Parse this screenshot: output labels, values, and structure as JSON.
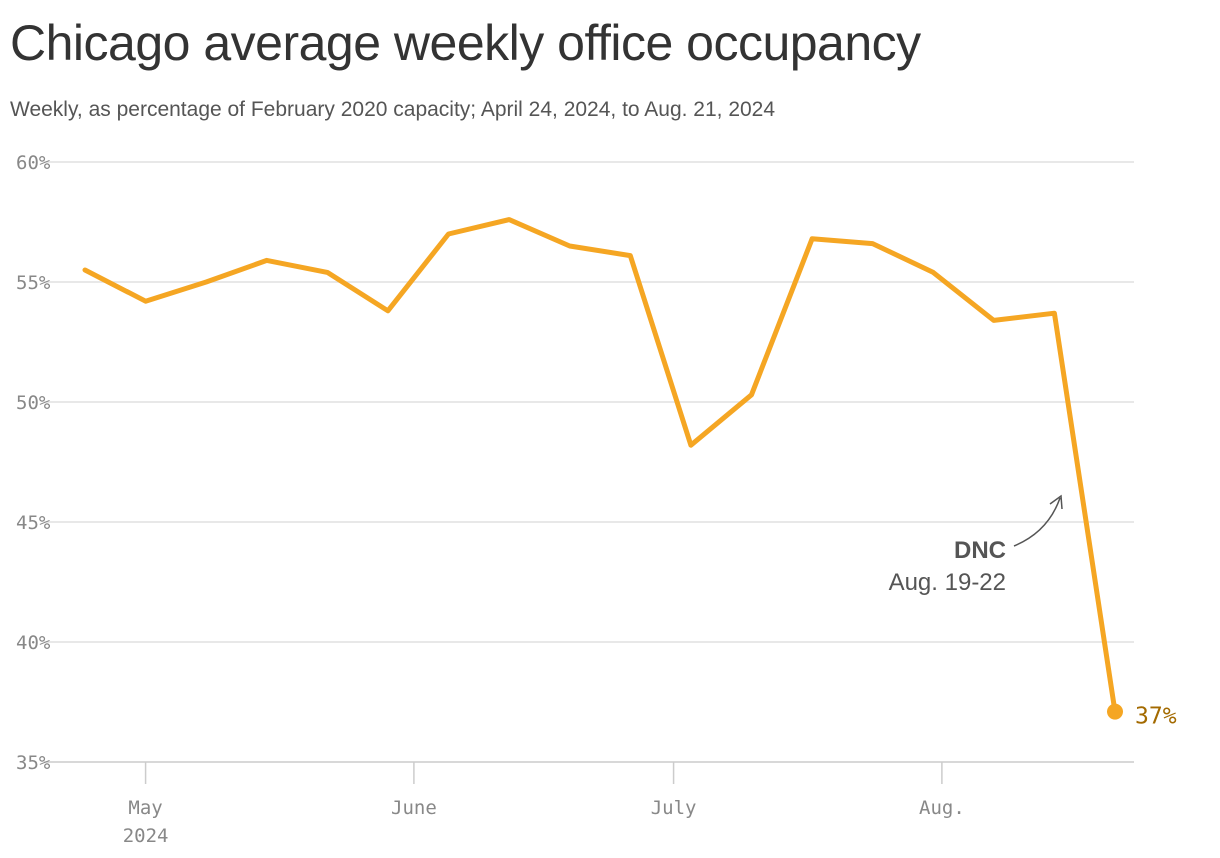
{
  "title": "Chicago average weekly office occupancy",
  "subtitle": "Weekly, as percentage of February 2020 capacity; April 24, 2024, to Aug. 21, 2024",
  "colors": {
    "line": "#f5a623",
    "grid": "#e0e0e0",
    "tick_text": "#888888",
    "annotation": "#555555",
    "end_label": "#a36a00"
  },
  "chart_data": {
    "type": "line",
    "title": "Chicago average weekly office occupancy",
    "subtitle": "Weekly, as percentage of February 2020 capacity; April 24, 2024, to Aug. 21, 2024",
    "xlabel": "",
    "ylabel": "",
    "x": [
      "2024-04-24",
      "2024-05-01",
      "2024-05-08",
      "2024-05-15",
      "2024-05-22",
      "2024-05-29",
      "2024-06-05",
      "2024-06-12",
      "2024-06-19",
      "2024-06-26",
      "2024-07-03",
      "2024-07-10",
      "2024-07-17",
      "2024-07-24",
      "2024-07-31",
      "2024-08-07",
      "2024-08-14",
      "2024-08-21"
    ],
    "values": [
      55.5,
      54.2,
      55.0,
      55.9,
      55.4,
      53.8,
      57.0,
      57.6,
      56.5,
      56.1,
      48.2,
      50.3,
      56.8,
      56.6,
      55.4,
      53.4,
      53.7,
      37.1
    ],
    "ylim": [
      35,
      60
    ],
    "y_ticks": [
      "60%",
      "55%",
      "50%",
      "45%",
      "40%",
      "35%"
    ],
    "y_tick_values": [
      60,
      55,
      50,
      45,
      40,
      35
    ],
    "x_ticks": [
      {
        "date": "2024-05-01",
        "label": "May",
        "sublabel": "2024"
      },
      {
        "date": "2024-06-01",
        "label": "June",
        "sublabel": ""
      },
      {
        "date": "2024-07-01",
        "label": "July",
        "sublabel": ""
      },
      {
        "date": "2024-08-01",
        "label": "Aug.",
        "sublabel": ""
      }
    ],
    "x_range": [
      "2024-04-24",
      "2024-08-21"
    ],
    "grid": true,
    "end_label": "37%",
    "annotation": {
      "title": "DNC",
      "text": "Aug. 19-22"
    }
  }
}
